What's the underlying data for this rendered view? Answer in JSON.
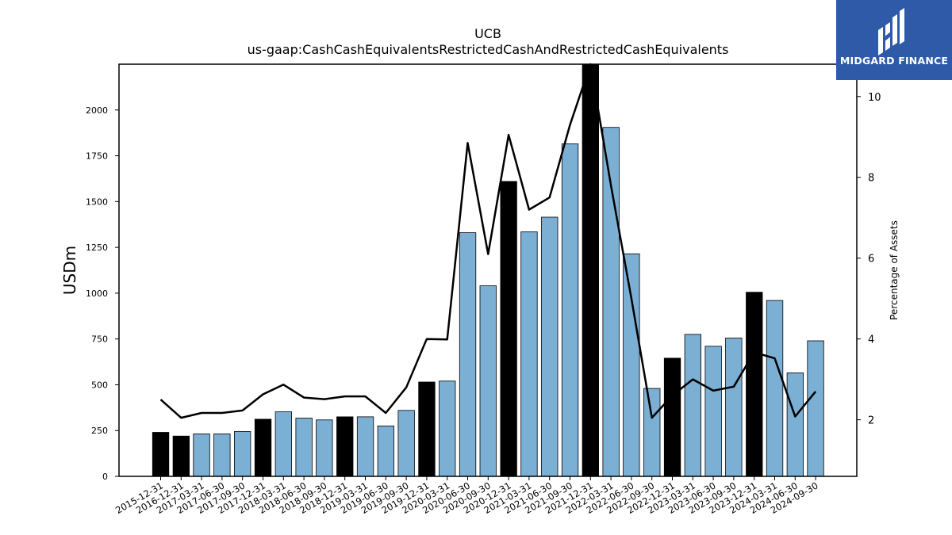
{
  "chart_data": {
    "type": "bar",
    "title": "UCB",
    "subtitle": "us-gaap:CashCashEquivalentsRestrictedCashAndRestrictedCashEquivalents",
    "ylabel": "USDm",
    "y2label": "Percentage of Assets",
    "ylim": [
      0,
      2250
    ],
    "y2lim": [
      0.6,
      10.8
    ],
    "yticks": [
      0,
      250,
      500,
      750,
      1000,
      1250,
      1500,
      1750,
      2000
    ],
    "y2ticks": [
      2,
      4,
      6,
      8,
      10
    ],
    "categories": [
      "2015-12-31",
      "2016-12-31",
      "2017-03-31",
      "2017-06-30",
      "2017-09-30",
      "2017-12-31",
      "2018-03-31",
      "2018-06-30",
      "2018-09-30",
      "2018-12-31",
      "2019-03-31",
      "2019-06-30",
      "2019-09-30",
      "2019-12-31",
      "2020-03-31",
      "2020-06-30",
      "2020-09-30",
      "2020-12-31",
      "2021-03-31",
      "2021-06-30",
      "2021-09-30",
      "2021-12-31",
      "2022-03-31",
      "2022-06-30",
      "2022-09-30",
      "2022-12-31",
      "2023-03-31",
      "2023-06-30",
      "2023-09-30",
      "2023-12-31",
      "2024-03-31",
      "2024-06-30",
      "2024-09-30"
    ],
    "series": [
      {
        "type": "bar",
        "values": [
          240,
          220,
          232,
          232,
          245,
          312,
          352,
          318,
          308,
          325,
          325,
          275,
          360,
          515,
          520,
          1330,
          1040,
          1610,
          1335,
          1415,
          1815,
          2250,
          1905,
          1215,
          480,
          645,
          775,
          710,
          755,
          1005,
          960,
          565,
          740
        ],
        "colors": [
          "#000000",
          "#000000",
          "#7bafd4",
          "#7bafd4",
          "#7bafd4",
          "#000000",
          "#7bafd4",
          "#7bafd4",
          "#7bafd4",
          "#000000",
          "#7bafd4",
          "#7bafd4",
          "#7bafd4",
          "#000000",
          "#7bafd4",
          "#7bafd4",
          "#7bafd4",
          "#000000",
          "#7bafd4",
          "#7bafd4",
          "#7bafd4",
          "#000000",
          "#7bafd4",
          "#7bafd4",
          "#7bafd4",
          "#000000",
          "#7bafd4",
          "#7bafd4",
          "#7bafd4",
          "#000000",
          "#7bafd4",
          "#7bafd4",
          "#7bafd4"
        ]
      },
      {
        "type": "line",
        "axis": "right",
        "color": "#000000",
        "values": [
          2.5,
          2.05,
          2.17,
          2.17,
          2.23,
          2.63,
          2.87,
          2.55,
          2.51,
          2.58,
          2.58,
          2.17,
          2.8,
          4.0,
          3.99,
          8.85,
          6.1,
          9.05,
          7.2,
          7.5,
          9.3,
          10.95,
          7.8,
          5.0,
          2.05,
          2.6,
          3.0,
          2.72,
          2.82,
          3.67,
          3.52,
          2.08,
          2.7
        ]
      }
    ],
    "grid": false,
    "legend": "none"
  },
  "logo": {
    "text": "MIDGARD FINANCE",
    "color": "#2f5aa8"
  }
}
